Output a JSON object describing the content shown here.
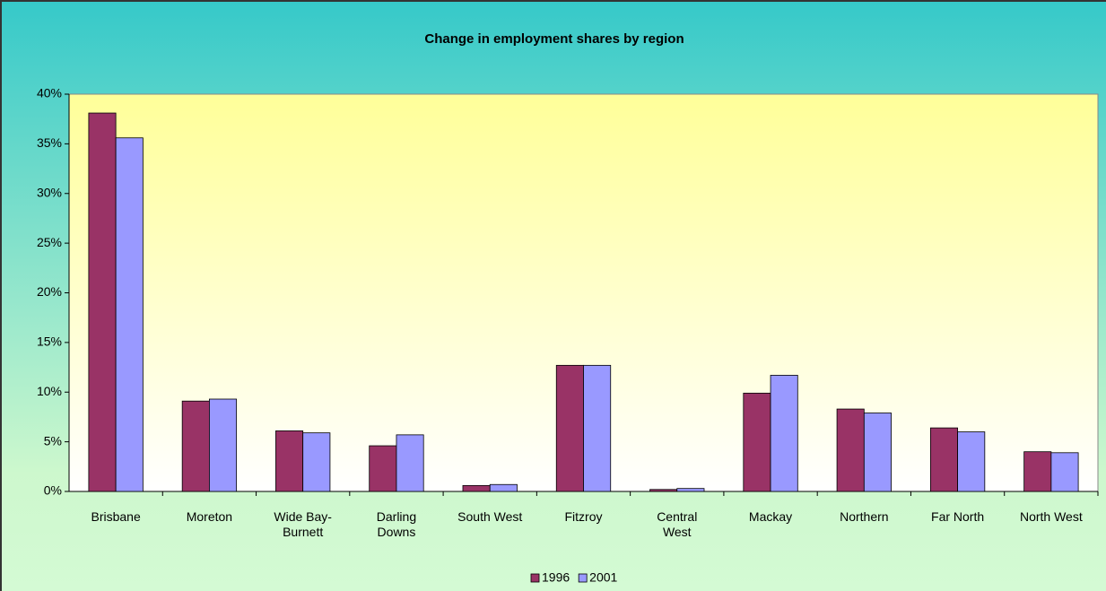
{
  "chart_data": {
    "type": "bar",
    "title": "Change in employment shares by region",
    "categories": [
      "Brisbane",
      "Moreton",
      "Wide Bay-Burnett",
      "Darling Downs",
      "South West",
      "Fitzroy",
      "Central West",
      "Mackay",
      "Northern",
      "Far North",
      "North West"
    ],
    "series": [
      {
        "name": "1996",
        "color": "#993366",
        "values": [
          38.1,
          9.1,
          6.1,
          4.6,
          0.6,
          12.7,
          0.2,
          9.9,
          8.3,
          6.4,
          4.0
        ]
      },
      {
        "name": "2001",
        "color": "#9999ff",
        "values": [
          35.6,
          9.3,
          5.9,
          5.7,
          0.7,
          12.7,
          0.3,
          11.7,
          7.9,
          6.0,
          3.9
        ]
      }
    ],
    "ylim": [
      0,
      40
    ],
    "yticks": [
      {
        "value": 0,
        "label": "0%"
      },
      {
        "value": 5,
        "label": "5%"
      },
      {
        "value": 10,
        "label": "10%"
      },
      {
        "value": 15,
        "label": "15%"
      },
      {
        "value": 20,
        "label": "20%"
      },
      {
        "value": 25,
        "label": "25%"
      },
      {
        "value": 30,
        "label": "30%"
      },
      {
        "value": 35,
        "label": "35%"
      },
      {
        "value": 40,
        "label": "40%"
      }
    ],
    "legend": "bottom"
  }
}
